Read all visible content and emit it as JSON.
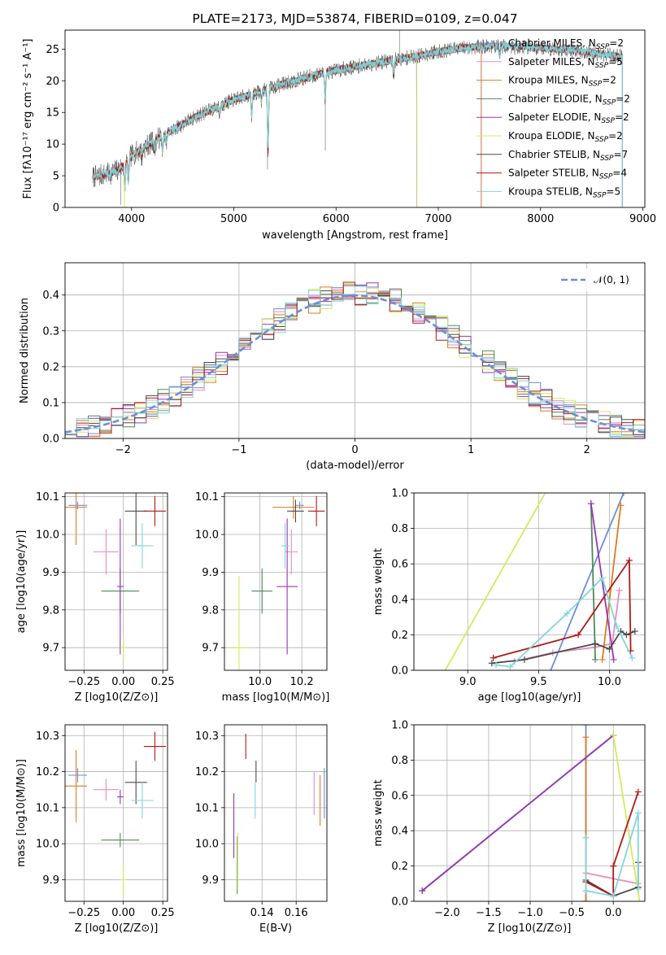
{
  "colors": {
    "Chabrier MILES": "#6a8fd8",
    "Salpeter MILES": "#e98cc0",
    "Kroupa MILES": "#e07b20",
    "Chabrier ELODIE": "#4e8a58",
    "Salpeter ELODIE": "#9a35b8",
    "Kroupa ELODIE": "#d7e85c",
    "Chabrier STELIB": "#4a4a4a",
    "Salpeter STELIB": "#b01818",
    "Kroupa STELIB": "#7fd6dc"
  },
  "chart_data": [
    {
      "id": "spectrum",
      "type": "line",
      "title": "PLATE=2173, MJD=53874, FIBERID=0109, z=0.047",
      "xlabel": "wavelength [Angstrom, rest frame]",
      "ylabel": "Flux [fλ10⁻¹⁷ erg cm⁻² s⁻¹ A⁻¹]",
      "xlim": [
        3350,
        9020
      ],
      "ylim": [
        0,
        28
      ],
      "xticks": [
        4000,
        5000,
        6000,
        7000,
        8000,
        9000
      ],
      "yticks": [
        0,
        5,
        10,
        15,
        20,
        25
      ],
      "grid": false,
      "legend_position": "top-right",
      "legend": [
        {
          "model": "Chabrier MILES",
          "label": "Chabrier MILES, N",
          "sub": "SSP",
          "suffix": "=2"
        },
        {
          "model": "Salpeter MILES",
          "label": "Salpeter MILES, N",
          "sub": "SSP",
          "suffix": "=5"
        },
        {
          "model": "Kroupa MILES",
          "label": "Kroupa MILES, N",
          "sub": "SSP",
          "suffix": "=2"
        },
        {
          "model": "Chabrier ELODIE",
          "label": "Chabrier ELODIE, N",
          "sub": "SSP",
          "suffix": "=2"
        },
        {
          "model": "Salpeter ELODIE",
          "label": "Salpeter ELODIE, N",
          "sub": "SSP",
          "suffix": "=2"
        },
        {
          "model": "Kroupa ELODIE",
          "label": "Kroupa ELODIE, N",
          "sub": "SSP",
          "suffix": "=2"
        },
        {
          "model": "Chabrier STELIB",
          "label": "Chabrier STELIB, N",
          "sub": "SSP",
          "suffix": "=7"
        },
        {
          "model": "Salpeter STELIB",
          "label": "Salpeter STELIB, N",
          "sub": "SSP",
          "suffix": "=4"
        },
        {
          "model": "Kroupa STELIB",
          "label": "Kroupa STELIB, N",
          "sub": "SSP",
          "suffix": "=5"
        }
      ],
      "continuum": {
        "wavelength": [
          3620,
          3800,
          3900,
          4000,
          4200,
          4400,
          4600,
          4800,
          5000,
          5200,
          5500,
          5800,
          6100,
          6400,
          6700,
          7000,
          7300,
          7600,
          8000,
          8300,
          8600,
          8800
        ],
        "flux": [
          4.8,
          5.4,
          6.3,
          8.2,
          10.3,
          12.2,
          14.1,
          15.6,
          17.0,
          18.0,
          19.6,
          20.9,
          22.0,
          22.8,
          23.6,
          24.6,
          25.3,
          25.5,
          25.2,
          24.8,
          24.2,
          23.8
        ]
      },
      "model_ranges": {
        "Chabrier MILES": [
          3620,
          7420
        ],
        "Salpeter MILES": [
          3620,
          7420
        ],
        "Kroupa MILES": [
          3620,
          7420
        ],
        "Chabrier ELODIE": [
          3900,
          6790
        ],
        "Salpeter ELODIE": [
          3900,
          6790
        ],
        "Kroupa ELODIE": [
          3900,
          6790
        ],
        "Chabrier STELIB": [
          3620,
          8800
        ],
        "Salpeter STELIB": [
          3620,
          8800
        ],
        "Kroupa STELIB": [
          3620,
          8800
        ]
      }
    },
    {
      "id": "residuals",
      "type": "line",
      "xlabel": "(data-model)/error",
      "ylabel": "Normed distribution",
      "xlim": [
        -2.5,
        2.5
      ],
      "ylim": [
        0,
        0.49
      ],
      "xticks": [
        -2,
        -1,
        0,
        1,
        2
      ],
      "yticks": [
        0.0,
        0.1,
        0.2,
        0.3,
        0.4
      ],
      "grid": true,
      "legend_position": "top-right",
      "legend_label": "𝒩(0, 1)",
      "bins": {
        "start": -2.5,
        "width": 0.1,
        "count": 50
      }
    },
    {
      "id": "age_vs_Z",
      "type": "scatter",
      "xlabel": "Z [log10(Z/Z⊙)]",
      "ylabel": "age [log10(age/yr)]",
      "xlim": [
        -0.37,
        0.28
      ],
      "ylim": [
        9.64,
        10.11
      ],
      "xticks": [
        -0.25,
        0.0,
        0.25
      ],
      "yticks": [
        9.7,
        9.8,
        9.9,
        10.0,
        10.1
      ],
      "grid": true,
      "points": [
        {
          "model": "Chabrier MILES",
          "x": -0.29,
          "y": 10.077,
          "xerr": 0.06,
          "yerr": 0.01
        },
        {
          "model": "Salpeter MILES",
          "x": -0.11,
          "y": 9.954,
          "xerr": 0.08,
          "yerr": 0.06
        },
        {
          "model": "Kroupa MILES",
          "x": -0.3,
          "y": 10.072,
          "xerr": 0.07,
          "yerr": 0.1
        },
        {
          "model": "Chabrier ELODIE",
          "x": -0.02,
          "y": 9.85,
          "xerr": 0.12,
          "yerr": 0.06
        },
        {
          "model": "Salpeter ELODIE",
          "x": -0.02,
          "y": 9.862,
          "xerr": 0.02,
          "yerr": 0.18
        },
        {
          "model": "Kroupa ELODIE",
          "x": 0.0,
          "y": 9.7,
          "xerr": 0.02,
          "yerr": 0.03
        },
        {
          "model": "Chabrier STELIB",
          "x": 0.08,
          "y": 10.062,
          "xerr": 0.07,
          "yerr": 0.09
        },
        {
          "model": "Salpeter STELIB",
          "x": 0.2,
          "y": 10.062,
          "xerr": 0.07,
          "yerr": 0.04
        },
        {
          "model": "Kroupa STELIB",
          "x": 0.12,
          "y": 9.97,
          "xerr": 0.07,
          "yerr": 0.06
        }
      ]
    },
    {
      "id": "age_vs_mass",
      "type": "scatter",
      "xlabel": "mass [log10(M/M⊙)]",
      "ylabel": "",
      "xlim": [
        9.83,
        10.32
      ],
      "ylim": [
        9.64,
        10.11
      ],
      "xticks": [
        10.0,
        10.2
      ],
      "yticks": [
        9.7,
        9.8,
        9.9,
        10.0,
        10.1
      ],
      "grid": true,
      "points": [
        {
          "model": "Chabrier MILES",
          "x": 10.19,
          "y": 10.077,
          "xerr": 0.02,
          "yerr": 0.01
        },
        {
          "model": "Salpeter MILES",
          "x": 10.15,
          "y": 9.954,
          "xerr": 0.03,
          "yerr": 0.06
        },
        {
          "model": "Kroupa MILES",
          "x": 10.16,
          "y": 10.072,
          "xerr": 0.1,
          "yerr": 0.03
        },
        {
          "model": "Chabrier ELODIE",
          "x": 10.01,
          "y": 9.85,
          "xerr": 0.05,
          "yerr": 0.06
        },
        {
          "model": "Salpeter ELODIE",
          "x": 10.13,
          "y": 9.862,
          "xerr": 0.05,
          "yerr": 0.18
        },
        {
          "model": "Kroupa ELODIE",
          "x": 9.9,
          "y": 9.7,
          "xerr": 0.05,
          "yerr": 0.19
        },
        {
          "model": "Chabrier STELIB",
          "x": 10.17,
          "y": 10.062,
          "xerr": 0.04,
          "yerr": 0.03
        },
        {
          "model": "Salpeter STELIB",
          "x": 10.27,
          "y": 10.062,
          "xerr": 0.04,
          "yerr": 0.04
        },
        {
          "model": "Kroupa STELIB",
          "x": 10.12,
          "y": 9.97,
          "xerr": 0.02,
          "yerr": 0.06
        }
      ]
    },
    {
      "id": "massweight_vs_age",
      "type": "line",
      "xlabel": "age [log10(age/yr)]",
      "ylabel": "mass weight",
      "xlim": [
        8.62,
        10.25
      ],
      "ylim": [
        0,
        1
      ],
      "xticks": [
        9.0,
        9.5,
        10.0
      ],
      "yticks": [
        0.0,
        0.2,
        0.4,
        0.6,
        0.8,
        1.0
      ],
      "grid": true,
      "series": [
        {
          "model": "Chabrier MILES",
          "x": [
            9.38,
            10.1
          ],
          "y": [
            -0.4,
            1.0
          ]
        },
        {
          "model": "Salpeter MILES",
          "x": [
            9.33,
            9.6,
            9.9,
            10.02,
            10.07
          ],
          "y": [
            0.05,
            0.1,
            0.13,
            0.15,
            0.45
          ]
        },
        {
          "model": "Kroupa MILES",
          "x": [
            9.95,
            10.08
          ],
          "y": [
            0.06,
            0.93
          ]
        },
        {
          "model": "Chabrier ELODIE",
          "x": [
            9.87,
            9.9
          ],
          "y": [
            0.94,
            0.06
          ]
        },
        {
          "model": "Salpeter ELODIE",
          "x": [
            9.87,
            10.03
          ],
          "y": [
            0.94,
            0.06
          ]
        },
        {
          "model": "Kroupa ELODIE",
          "x": [
            8.7,
            9.9
          ],
          "y": [
            -0.2,
            1.5
          ]
        },
        {
          "model": "Chabrier STELIB",
          "x": [
            9.17,
            9.4,
            9.9,
            10.0,
            10.08,
            10.12,
            10.18
          ],
          "y": [
            0.04,
            0.06,
            0.15,
            0.12,
            0.22,
            0.2,
            0.22
          ]
        },
        {
          "model": "Salpeter STELIB",
          "x": [
            9.18,
            9.78,
            10.14,
            10.15
          ],
          "y": [
            0.07,
            0.2,
            0.62,
            0.11
          ]
        },
        {
          "model": "Kroupa STELIB",
          "x": [
            9.2,
            9.3,
            9.7,
            9.95,
            10.05,
            10.16
          ],
          "y": [
            0.03,
            0.02,
            0.32,
            0.52,
            0.25,
            0.07
          ]
        }
      ]
    },
    {
      "id": "mass_vs_Z",
      "type": "scatter",
      "xlabel": "Z [log10(Z/Z⊙)]",
      "ylabel": "mass [log10(M/M⊙)]",
      "xlim": [
        -0.37,
        0.28
      ],
      "ylim": [
        9.84,
        10.33
      ],
      "xticks": [
        -0.25,
        0.0,
        0.25
      ],
      "yticks": [
        9.9,
        10.0,
        10.1,
        10.2,
        10.3
      ],
      "grid": true,
      "points": [
        {
          "model": "Chabrier MILES",
          "x": -0.29,
          "y": 10.19,
          "xerr": 0.06,
          "yerr": 0.02
        },
        {
          "model": "Salpeter MILES",
          "x": -0.11,
          "y": 10.15,
          "xerr": 0.08,
          "yerr": 0.03
        },
        {
          "model": "Kroupa MILES",
          "x": -0.3,
          "y": 10.16,
          "xerr": 0.07,
          "yerr": 0.1
        },
        {
          "model": "Chabrier ELODIE",
          "x": -0.02,
          "y": 10.01,
          "xerr": 0.12,
          "yerr": 0.02
        },
        {
          "model": "Salpeter ELODIE",
          "x": -0.02,
          "y": 10.13,
          "xerr": 0.02,
          "yerr": 0.02
        },
        {
          "model": "Kroupa ELODIE",
          "x": 0.0,
          "y": 9.9,
          "xerr": 0.02,
          "yerr": 0.04
        },
        {
          "model": "Chabrier STELIB",
          "x": 0.08,
          "y": 10.17,
          "xerr": 0.07,
          "yerr": 0.06
        },
        {
          "model": "Salpeter STELIB",
          "x": 0.2,
          "y": 10.27,
          "xerr": 0.07,
          "yerr": 0.04
        },
        {
          "model": "Kroupa STELIB",
          "x": 0.12,
          "y": 10.12,
          "xerr": 0.07,
          "yerr": 0.05
        }
      ]
    },
    {
      "id": "mass_vs_EBV",
      "type": "scatter",
      "xlabel": "E(B-V)",
      "ylabel": "",
      "xlim": [
        0.118,
        0.178
      ],
      "ylim": [
        9.84,
        10.33
      ],
      "xticks": [
        0.14,
        0.16
      ],
      "yticks": [
        9.9,
        10.0,
        10.1,
        10.2,
        10.3
      ],
      "grid": true,
      "points": [
        {
          "model": "Chabrier MILES",
          "x": 0.1765,
          "y": 10.14,
          "xerr": 0,
          "yerr": 0.07
        },
        {
          "model": "Salpeter MILES",
          "x": 0.1705,
          "y": 10.14,
          "xerr": 0,
          "yerr": 0.06
        },
        {
          "model": "Kroupa MILES",
          "x": 0.174,
          "y": 10.12,
          "xerr": 0,
          "yerr": 0.07
        },
        {
          "model": "Chabrier ELODIE",
          "x": 0.1255,
          "y": 9.94,
          "xerr": 0,
          "yerr": 0.08
        },
        {
          "model": "Salpeter ELODIE",
          "x": 0.1235,
          "y": 10.05,
          "xerr": 0,
          "yerr": 0.09
        },
        {
          "model": "Kroupa ELODIE",
          "x": 0.1258,
          "y": 9.95,
          "xerr": 0,
          "yerr": 0.08
        },
        {
          "model": "Chabrier STELIB",
          "x": 0.1365,
          "y": 10.2,
          "xerr": 0,
          "yerr": 0.03
        },
        {
          "model": "Salpeter STELIB",
          "x": 0.1305,
          "y": 10.27,
          "xerr": 0,
          "yerr": 0.035
        },
        {
          "model": "Kroupa STELIB",
          "x": 0.136,
          "y": 10.12,
          "xerr": 0,
          "yerr": 0.05
        }
      ]
    },
    {
      "id": "massweight_vs_Z",
      "type": "line",
      "xlabel": "Z [log10(Z/Z⊙)]",
      "ylabel": "mass weight",
      "xlim": [
        -2.4,
        0.38
      ],
      "ylim": [
        0,
        1
      ],
      "xticks": [
        -2.0,
        -1.5,
        -1.0,
        -0.5,
        0.0
      ],
      "yticks": [
        0.0,
        0.2,
        0.4,
        0.6,
        0.8,
        1.0
      ],
      "grid": true,
      "series": [
        {
          "model": "Chabrier MILES",
          "x": [
            -0.33,
            -0.33
          ],
          "y": [
            0.0,
            1.0
          ]
        },
        {
          "model": "Salpeter MILES",
          "x": [
            -0.33,
            0.3
          ],
          "y": [
            0.16,
            0.1
          ]
        },
        {
          "model": "Kroupa MILES",
          "x": [
            -0.33,
            -0.33
          ],
          "y": [
            0.0,
            0.93
          ]
        },
        {
          "model": "Chabrier ELODIE",
          "x": [
            -2.3,
            0.0
          ],
          "y": [
            0.06,
            0.94
          ]
        },
        {
          "model": "Salpeter ELODIE",
          "x": [
            -2.3,
            0.0
          ],
          "y": [
            0.06,
            0.94
          ]
        },
        {
          "model": "Kroupa ELODIE",
          "x": [
            0.0,
            0.35
          ],
          "y": [
            0.94,
            -0.1
          ]
        },
        {
          "model": "Chabrier STELIB",
          "x": [
            -0.33,
            0.0,
            0.3,
            0.3
          ],
          "y": [
            0.12,
            0.03,
            0.08,
            0.22
          ]
        },
        {
          "model": "Salpeter STELIB",
          "x": [
            -0.33,
            0.0,
            0.0,
            0.3
          ],
          "y": [
            0.11,
            0.03,
            0.2,
            0.62
          ]
        },
        {
          "model": "Kroupa STELIB",
          "x": [
            -0.33,
            -0.33,
            0.0,
            0.3,
            0.3
          ],
          "y": [
            0.36,
            0.06,
            0.03,
            0.5,
            0.07
          ]
        }
      ]
    }
  ]
}
